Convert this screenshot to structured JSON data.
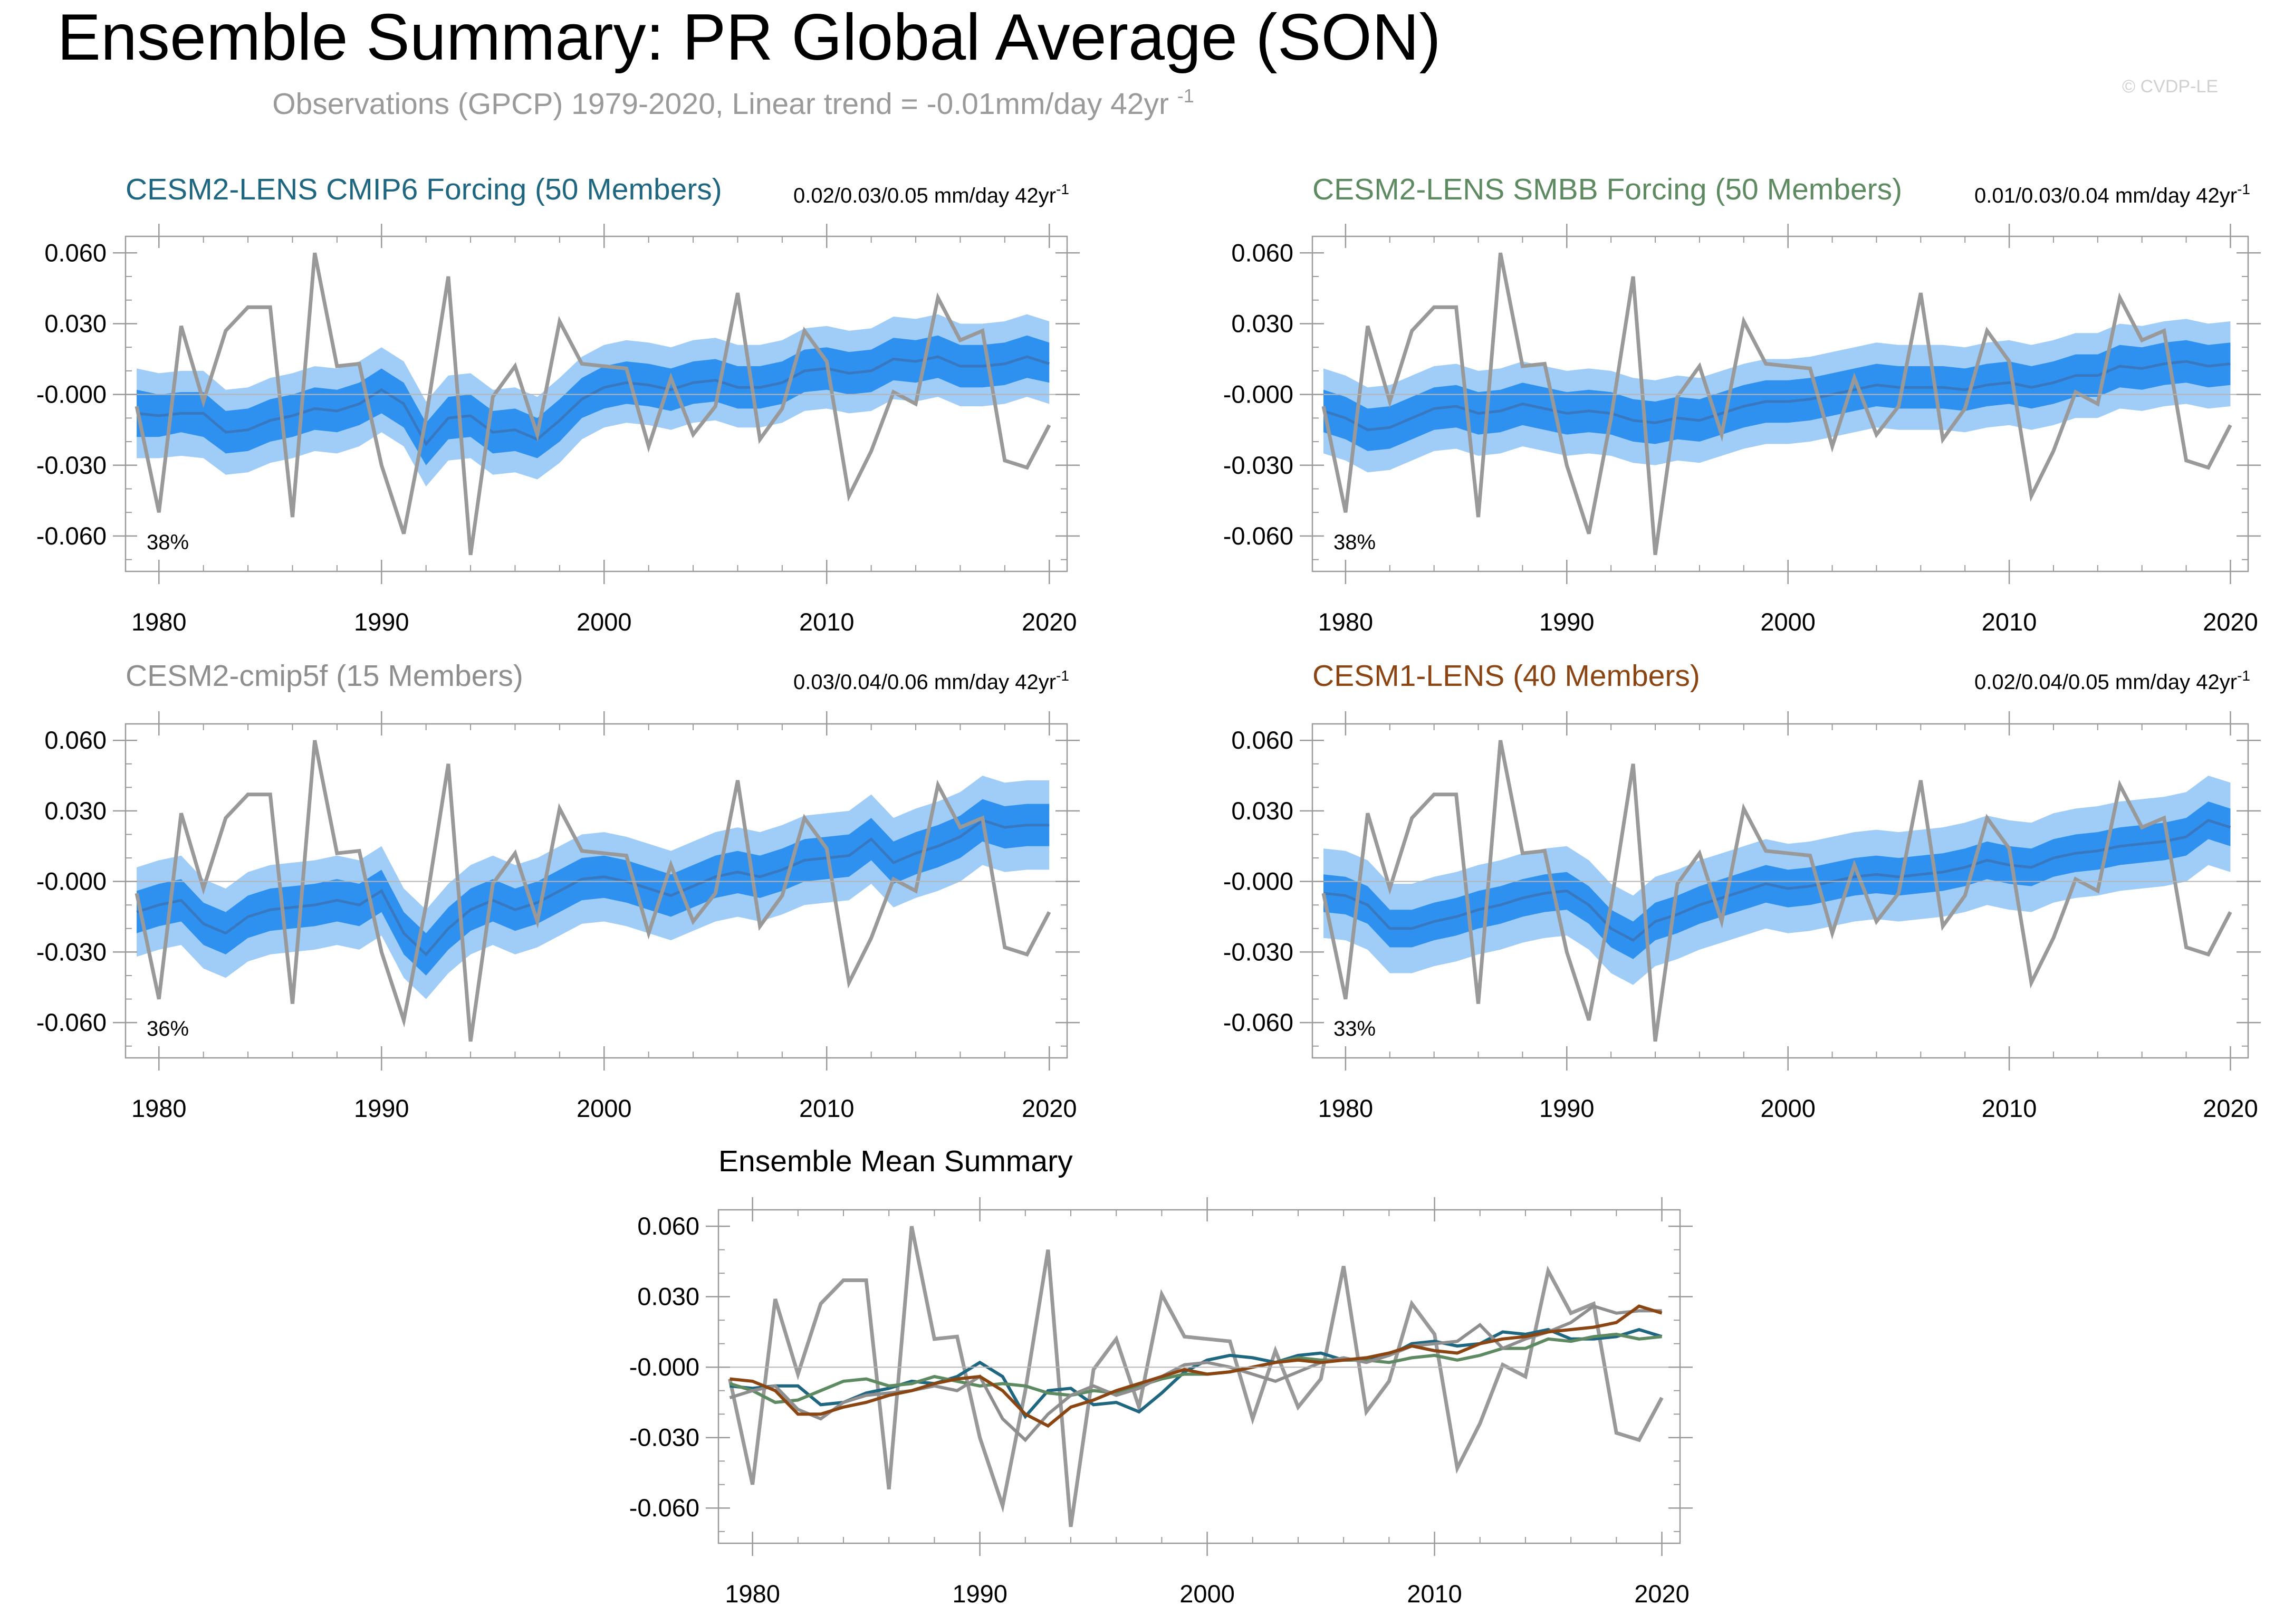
{
  "page": {
    "title": "Ensemble Summary: PR Global Average (SON)",
    "subtitle": "Observations (GPCP) 1979-2020, Linear trend = -0.01mm/day 42yr",
    "subtitle_sup": "-1",
    "watermark": "© CVDP-LE"
  },
  "colors": {
    "obs": "#999999",
    "band_outer": "#9fcdf7",
    "band_inner": "#2f91ef",
    "mean_line": "#3778c0",
    "cmip6": "#1f6780",
    "smbb": "#5e8a62",
    "cmip5f": "#8e8e8e",
    "lens1": "#8b4513",
    "zero_line": "#b5b5b5",
    "axis": "#9a9a9a"
  },
  "chart_data": [
    {
      "id": "cmip6",
      "type": "line",
      "title": "CESM2-LENS CMIP6 Forcing (50 Members)",
      "trend_label": "0.02/0.03/0.05 mm/day 42yr",
      "trend_sup": "-1",
      "percent": "38%",
      "xlim": [
        1978.5,
        2020.8
      ],
      "ylim": [
        -0.075,
        0.067
      ],
      "xticks": [
        "1980",
        "1990",
        "2000",
        "2010",
        "2020"
      ],
      "yticks": [
        "0.060",
        "0.030",
        "-0.000",
        "-0.030",
        "-0.060"
      ],
      "mean": [
        -0.008,
        -0.009,
        -0.008,
        -0.008,
        -0.016,
        -0.015,
        -0.011,
        -0.009,
        -0.006,
        -0.007,
        -0.004,
        0.002,
        -0.004,
        -0.021,
        -0.01,
        -0.009,
        -0.016,
        -0.015,
        -0.019,
        -0.011,
        -0.002,
        0.003,
        0.005,
        0.004,
        0.002,
        0.005,
        0.006,
        0.003,
        0.003,
        0.005,
        0.01,
        0.011,
        0.009,
        0.01,
        0.015,
        0.014,
        0.016,
        0.012,
        0.012,
        0.013,
        0.016,
        0.013
      ],
      "inner_low": [
        -0.018,
        -0.018,
        -0.016,
        -0.018,
        -0.025,
        -0.024,
        -0.02,
        -0.018,
        -0.015,
        -0.016,
        -0.013,
        -0.008,
        -0.014,
        -0.03,
        -0.019,
        -0.018,
        -0.025,
        -0.024,
        -0.027,
        -0.02,
        -0.01,
        -0.006,
        -0.004,
        -0.005,
        -0.007,
        -0.004,
        -0.003,
        -0.006,
        -0.006,
        -0.004,
        0.001,
        0.002,
        0.0,
        0.001,
        0.006,
        0.005,
        0.007,
        0.003,
        0.003,
        0.004,
        0.007,
        0.005
      ],
      "inner_high": [
        0.002,
        0.0,
        0.001,
        0.001,
        -0.007,
        -0.006,
        -0.002,
        0.0,
        0.003,
        0.002,
        0.005,
        0.011,
        0.005,
        -0.012,
        -0.001,
        0.0,
        -0.007,
        -0.006,
        -0.01,
        -0.002,
        0.007,
        0.012,
        0.014,
        0.013,
        0.011,
        0.014,
        0.015,
        0.012,
        0.012,
        0.014,
        0.019,
        0.02,
        0.018,
        0.019,
        0.024,
        0.023,
        0.025,
        0.021,
        0.021,
        0.022,
        0.025,
        0.022
      ],
      "outer_low": [
        -0.027,
        -0.027,
        -0.026,
        -0.027,
        -0.034,
        -0.033,
        -0.029,
        -0.027,
        -0.024,
        -0.025,
        -0.022,
        -0.016,
        -0.022,
        -0.039,
        -0.028,
        -0.027,
        -0.034,
        -0.033,
        -0.036,
        -0.029,
        -0.019,
        -0.014,
        -0.012,
        -0.013,
        -0.015,
        -0.012,
        -0.011,
        -0.014,
        -0.014,
        -0.012,
        -0.007,
        -0.006,
        -0.008,
        -0.007,
        -0.002,
        -0.003,
        -0.001,
        -0.005,
        -0.005,
        -0.004,
        -0.001,
        -0.004
      ],
      "outer_high": [
        0.011,
        0.009,
        0.01,
        0.01,
        0.002,
        0.003,
        0.007,
        0.009,
        0.012,
        0.011,
        0.014,
        0.02,
        0.014,
        -0.003,
        0.008,
        0.009,
        0.002,
        0.003,
        -0.001,
        0.007,
        0.016,
        0.021,
        0.023,
        0.022,
        0.02,
        0.023,
        0.024,
        0.021,
        0.021,
        0.023,
        0.028,
        0.029,
        0.027,
        0.028,
        0.033,
        0.032,
        0.034,
        0.03,
        0.03,
        0.031,
        0.034,
        0.031
      ]
    },
    {
      "id": "smbb",
      "type": "line",
      "title": "CESM2-LENS SMBB Forcing (50 Members)",
      "trend_label": "0.01/0.03/0.04 mm/day 42yr",
      "trend_sup": "-1",
      "percent": "38%",
      "xlim": [
        1978.5,
        2020.8
      ],
      "ylim": [
        -0.075,
        0.067
      ],
      "xticks": [
        "1980",
        "1990",
        "2000",
        "2010",
        "2020"
      ],
      "yticks": [
        "0.060",
        "0.030",
        "-0.000",
        "-0.030",
        "-0.060"
      ],
      "mean": [
        -0.007,
        -0.01,
        -0.015,
        -0.014,
        -0.01,
        -0.006,
        -0.005,
        -0.008,
        -0.007,
        -0.004,
        -0.006,
        -0.008,
        -0.007,
        -0.008,
        -0.011,
        -0.012,
        -0.01,
        -0.011,
        -0.008,
        -0.005,
        -0.003,
        -0.003,
        -0.002,
        0.0,
        0.002,
        0.004,
        0.003,
        0.003,
        0.003,
        0.002,
        0.004,
        0.005,
        0.003,
        0.005,
        0.008,
        0.008,
        0.012,
        0.011,
        0.013,
        0.014,
        0.012,
        0.013
      ],
      "inner_low": [
        -0.016,
        -0.019,
        -0.024,
        -0.023,
        -0.019,
        -0.015,
        -0.014,
        -0.017,
        -0.016,
        -0.013,
        -0.015,
        -0.017,
        -0.016,
        -0.017,
        -0.02,
        -0.021,
        -0.019,
        -0.02,
        -0.017,
        -0.014,
        -0.012,
        -0.012,
        -0.011,
        -0.009,
        -0.007,
        -0.005,
        -0.006,
        -0.006,
        -0.006,
        -0.007,
        -0.005,
        -0.004,
        -0.006,
        -0.004,
        -0.001,
        -0.001,
        0.003,
        0.002,
        0.004,
        0.005,
        0.003,
        0.004
      ],
      "inner_high": [
        0.002,
        -0.001,
        -0.006,
        -0.005,
        -0.001,
        0.003,
        0.004,
        0.001,
        0.002,
        0.005,
        0.003,
        0.001,
        0.002,
        0.001,
        -0.002,
        -0.003,
        -0.001,
        -0.002,
        0.001,
        0.004,
        0.006,
        0.006,
        0.007,
        0.009,
        0.011,
        0.013,
        0.012,
        0.012,
        0.012,
        0.011,
        0.013,
        0.014,
        0.012,
        0.014,
        0.017,
        0.017,
        0.021,
        0.02,
        0.022,
        0.023,
        0.021,
        0.022
      ],
      "outer_low": [
        -0.025,
        -0.028,
        -0.033,
        -0.032,
        -0.028,
        -0.024,
        -0.023,
        -0.026,
        -0.025,
        -0.022,
        -0.024,
        -0.026,
        -0.025,
        -0.026,
        -0.029,
        -0.03,
        -0.028,
        -0.029,
        -0.026,
        -0.023,
        -0.021,
        -0.021,
        -0.02,
        -0.018,
        -0.016,
        -0.014,
        -0.015,
        -0.015,
        -0.015,
        -0.016,
        -0.014,
        -0.013,
        -0.015,
        -0.013,
        -0.01,
        -0.01,
        -0.006,
        -0.007,
        -0.005,
        -0.004,
        -0.006,
        -0.005
      ],
      "outer_high": [
        0.011,
        0.008,
        0.003,
        0.004,
        0.008,
        0.012,
        0.013,
        0.01,
        0.011,
        0.014,
        0.012,
        0.01,
        0.011,
        0.01,
        0.007,
        0.006,
        0.008,
        0.007,
        0.01,
        0.013,
        0.015,
        0.015,
        0.016,
        0.018,
        0.02,
        0.022,
        0.021,
        0.021,
        0.021,
        0.02,
        0.022,
        0.023,
        0.021,
        0.023,
        0.026,
        0.026,
        0.03,
        0.029,
        0.031,
        0.032,
        0.03,
        0.031
      ]
    },
    {
      "id": "cmip5f",
      "type": "line",
      "title": "CESM2-cmip5f (15 Members)",
      "trend_label": "0.03/0.04/0.06 mm/day 42yr",
      "trend_sup": "-1",
      "percent": "36%",
      "xlim": [
        1978.5,
        2020.8
      ],
      "ylim": [
        -0.075,
        0.067
      ],
      "xticks": [
        "1980",
        "1990",
        "2000",
        "2010",
        "2020"
      ],
      "yticks": [
        "0.060",
        "0.030",
        "-0.000",
        "-0.030",
        "-0.060"
      ],
      "mean": [
        -0.013,
        -0.01,
        -0.008,
        -0.018,
        -0.022,
        -0.015,
        -0.012,
        -0.011,
        -0.01,
        -0.008,
        -0.01,
        -0.004,
        -0.022,
        -0.031,
        -0.02,
        -0.012,
        -0.008,
        -0.012,
        -0.009,
        -0.004,
        0.001,
        0.002,
        0.0,
        -0.003,
        -0.006,
        -0.002,
        0.002,
        0.004,
        0.002,
        0.005,
        0.009,
        0.01,
        0.011,
        0.018,
        0.008,
        0.012,
        0.015,
        0.019,
        0.026,
        0.023,
        0.024,
        0.024
      ],
      "inner_low": [
        -0.022,
        -0.019,
        -0.017,
        -0.027,
        -0.031,
        -0.024,
        -0.021,
        -0.02,
        -0.019,
        -0.017,
        -0.019,
        -0.013,
        -0.031,
        -0.04,
        -0.029,
        -0.021,
        -0.017,
        -0.021,
        -0.018,
        -0.013,
        -0.008,
        -0.007,
        -0.009,
        -0.012,
        -0.015,
        -0.011,
        -0.007,
        -0.005,
        -0.007,
        -0.004,
        0.0,
        0.001,
        0.002,
        0.009,
        -0.001,
        0.003,
        0.006,
        0.01,
        0.017,
        0.014,
        0.015,
        0.015
      ],
      "inner_high": [
        -0.004,
        -0.001,
        0.001,
        -0.009,
        -0.013,
        -0.006,
        -0.003,
        -0.002,
        -0.001,
        0.001,
        -0.001,
        0.005,
        -0.013,
        -0.022,
        -0.011,
        -0.003,
        0.001,
        -0.003,
        0.0,
        0.005,
        0.01,
        0.011,
        0.009,
        0.006,
        0.003,
        0.007,
        0.011,
        0.013,
        0.011,
        0.014,
        0.018,
        0.019,
        0.02,
        0.027,
        0.017,
        0.021,
        0.024,
        0.028,
        0.035,
        0.032,
        0.033,
        0.033
      ],
      "outer_low": [
        -0.032,
        -0.029,
        -0.027,
        -0.037,
        -0.041,
        -0.034,
        -0.031,
        -0.03,
        -0.029,
        -0.027,
        -0.029,
        -0.023,
        -0.041,
        -0.05,
        -0.039,
        -0.031,
        -0.027,
        -0.031,
        -0.028,
        -0.023,
        -0.018,
        -0.017,
        -0.019,
        -0.022,
        -0.025,
        -0.021,
        -0.017,
        -0.015,
        -0.017,
        -0.014,
        -0.01,
        -0.009,
        -0.008,
        -0.001,
        -0.011,
        -0.007,
        -0.004,
        0.0,
        0.007,
        0.004,
        0.005,
        0.005
      ],
      "outer_high": [
        0.006,
        0.009,
        0.011,
        0.001,
        -0.003,
        0.004,
        0.007,
        0.008,
        0.009,
        0.011,
        0.009,
        0.015,
        -0.003,
        -0.012,
        -0.001,
        0.007,
        0.011,
        0.007,
        0.01,
        0.015,
        0.02,
        0.021,
        0.019,
        0.016,
        0.013,
        0.017,
        0.021,
        0.023,
        0.021,
        0.024,
        0.028,
        0.029,
        0.03,
        0.037,
        0.027,
        0.031,
        0.034,
        0.038,
        0.045,
        0.042,
        0.043,
        0.043
      ]
    },
    {
      "id": "lens1",
      "type": "line",
      "title": "CESM1-LENS (40 Members)",
      "trend_label": "0.02/0.04/0.05 mm/day 42yr",
      "trend_sup": "-1",
      "percent": "33%",
      "xlim": [
        1978.5,
        2020.8
      ],
      "ylim": [
        -0.075,
        0.067
      ],
      "xticks": [
        "1980",
        "1990",
        "2000",
        "2010",
        "2020"
      ],
      "yticks": [
        "0.060",
        "0.030",
        "-0.000",
        "-0.030",
        "-0.060"
      ],
      "mean": [
        -0.005,
        -0.006,
        -0.01,
        -0.02,
        -0.02,
        -0.017,
        -0.015,
        -0.012,
        -0.01,
        -0.007,
        -0.005,
        -0.004,
        -0.01,
        -0.02,
        -0.025,
        -0.017,
        -0.014,
        -0.01,
        -0.007,
        -0.004,
        -0.001,
        -0.003,
        -0.002,
        0.0,
        0.002,
        0.003,
        0.002,
        0.003,
        0.004,
        0.006,
        0.009,
        0.007,
        0.006,
        0.01,
        0.012,
        0.013,
        0.015,
        0.016,
        0.017,
        0.019,
        0.026,
        0.023
      ],
      "inner_low": [
        -0.013,
        -0.014,
        -0.018,
        -0.028,
        -0.028,
        -0.025,
        -0.023,
        -0.02,
        -0.018,
        -0.015,
        -0.013,
        -0.012,
        -0.018,
        -0.028,
        -0.033,
        -0.025,
        -0.022,
        -0.018,
        -0.015,
        -0.012,
        -0.009,
        -0.011,
        -0.01,
        -0.008,
        -0.006,
        -0.005,
        -0.006,
        -0.005,
        -0.004,
        -0.002,
        0.001,
        -0.001,
        -0.002,
        0.002,
        0.004,
        0.005,
        0.007,
        0.008,
        0.009,
        0.011,
        0.018,
        0.015
      ],
      "inner_high": [
        0.003,
        0.002,
        -0.002,
        -0.012,
        -0.012,
        -0.009,
        -0.007,
        -0.004,
        -0.002,
        0.001,
        0.003,
        0.004,
        -0.002,
        -0.012,
        -0.017,
        -0.009,
        -0.006,
        -0.002,
        0.001,
        0.004,
        0.007,
        0.005,
        0.006,
        0.008,
        0.01,
        0.011,
        0.01,
        0.011,
        0.012,
        0.014,
        0.017,
        0.015,
        0.014,
        0.018,
        0.02,
        0.021,
        0.023,
        0.024,
        0.025,
        0.027,
        0.034,
        0.031
      ],
      "outer_low": [
        -0.024,
        -0.025,
        -0.029,
        -0.039,
        -0.039,
        -0.036,
        -0.034,
        -0.031,
        -0.029,
        -0.026,
        -0.024,
        -0.023,
        -0.029,
        -0.039,
        -0.044,
        -0.036,
        -0.033,
        -0.029,
        -0.026,
        -0.023,
        -0.02,
        -0.022,
        -0.021,
        -0.019,
        -0.017,
        -0.016,
        -0.017,
        -0.016,
        -0.015,
        -0.013,
        -0.01,
        -0.012,
        -0.013,
        -0.009,
        -0.007,
        -0.006,
        -0.004,
        -0.003,
        -0.002,
        0.0,
        0.007,
        0.004
      ],
      "outer_high": [
        0.014,
        0.013,
        0.009,
        -0.001,
        -0.001,
        0.002,
        0.004,
        0.007,
        0.009,
        0.012,
        0.014,
        0.015,
        0.009,
        -0.001,
        -0.006,
        0.002,
        0.005,
        0.009,
        0.012,
        0.015,
        0.018,
        0.016,
        0.017,
        0.019,
        0.021,
        0.022,
        0.021,
        0.022,
        0.023,
        0.025,
        0.028,
        0.026,
        0.025,
        0.029,
        0.031,
        0.032,
        0.034,
        0.035,
        0.036,
        0.038,
        0.045,
        0.042
      ]
    },
    {
      "id": "summary",
      "type": "line",
      "title": "Ensemble Mean Summary",
      "xlim": [
        1978.5,
        2020.8
      ],
      "ylim": [
        -0.075,
        0.067
      ],
      "xticks": [
        "1980",
        "1990",
        "2000",
        "2010",
        "2020"
      ],
      "yticks": [
        "0.060",
        "0.030",
        "-0.000",
        "-0.030",
        "-0.060"
      ]
    }
  ],
  "observations": {
    "name": "GPCP",
    "start_year": 1979,
    "values": [
      -0.005,
      -0.05,
      0.029,
      -0.003,
      0.027,
      0.037,
      0.037,
      -0.052,
      0.06,
      0.012,
      0.013,
      -0.03,
      -0.059,
      -0.01,
      0.05,
      -0.068,
      -0.001,
      0.012,
      -0.017,
      0.031,
      0.013,
      0.012,
      0.011,
      -0.022,
      0.007,
      -0.017,
      -0.005,
      0.043,
      -0.019,
      -0.006,
      0.027,
      0.014,
      -0.043,
      -0.024,
      0.001,
      -0.004,
      0.041,
      0.023,
      0.027,
      -0.028,
      -0.031,
      -0.013
    ]
  }
}
